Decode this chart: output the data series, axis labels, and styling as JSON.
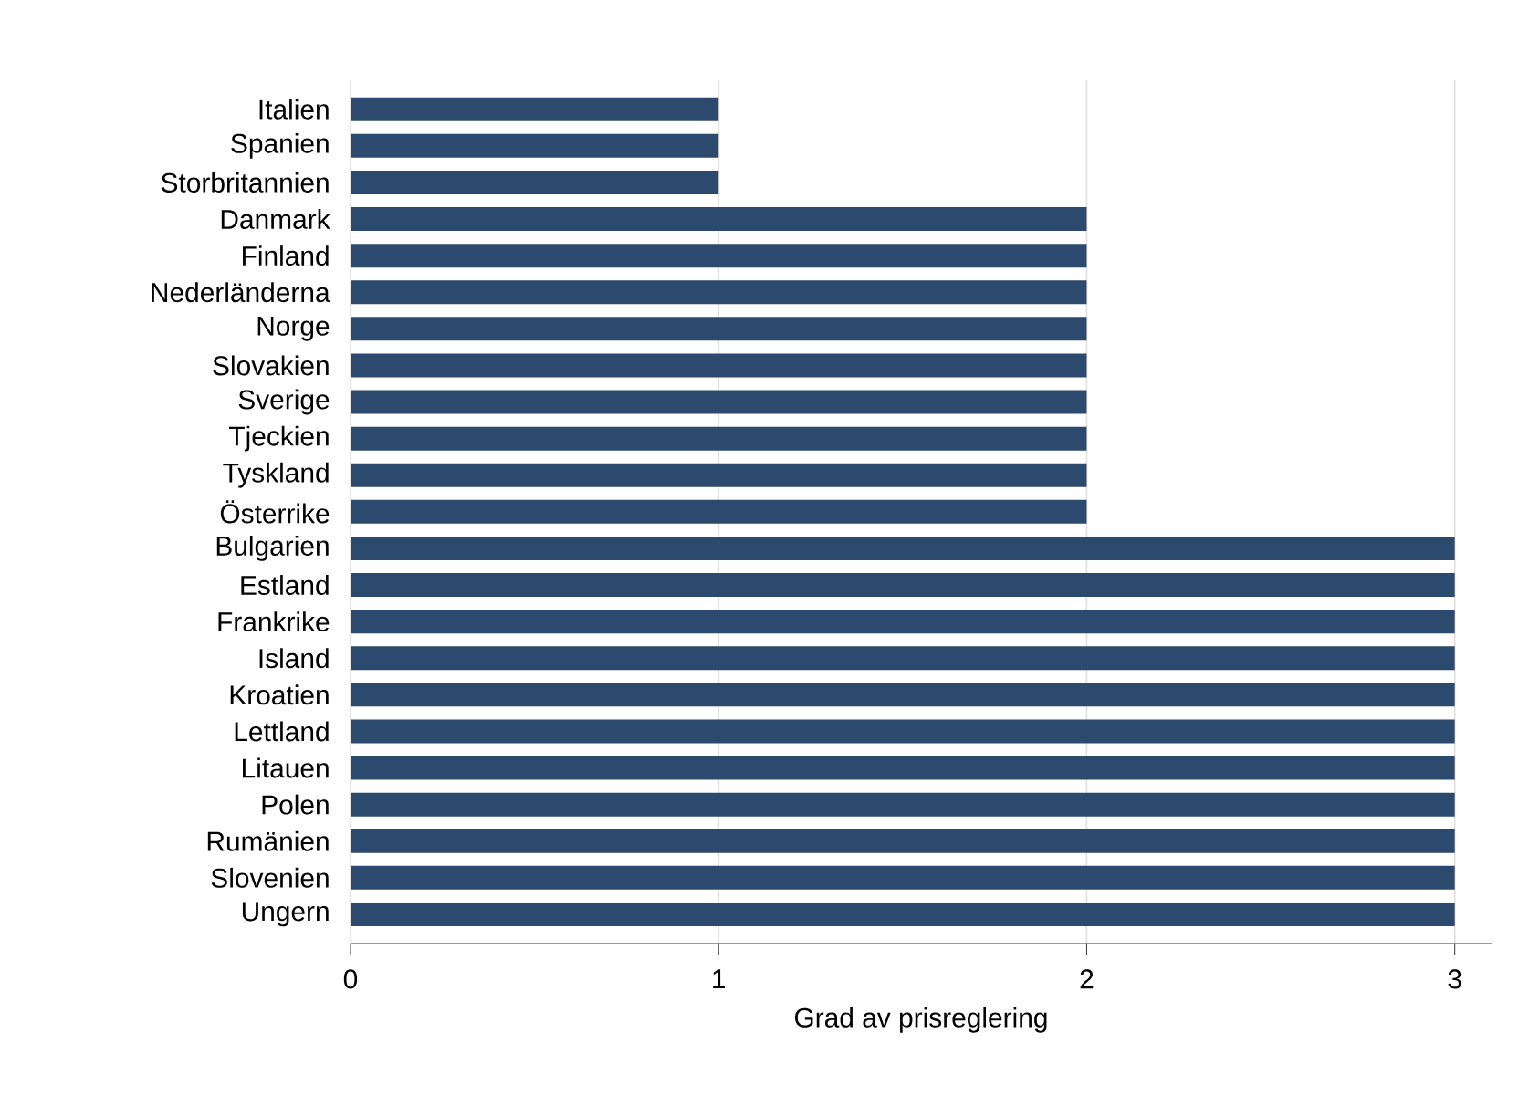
{
  "chart_data": {
    "type": "bar",
    "orientation": "horizontal",
    "xlabel": "Grad av prisreglering",
    "categories": [
      "Italien",
      "Spanien",
      "Storbritannien",
      "Danmark",
      "Finland",
      "Nederländerna",
      "Norge",
      "Slovakien",
      "Sverige",
      "Tjeckien",
      "Tyskland",
      "Österrike",
      "Bulgarien",
      "Estland",
      "Frankrike",
      "Island",
      "Kroatien",
      "Lettland",
      "Litauen",
      "Polen",
      "Rumänien",
      "Slovenien",
      "Ungern"
    ],
    "values": [
      1,
      1,
      1,
      2,
      2,
      2,
      2,
      2,
      2,
      2,
      2,
      2,
      3,
      3,
      3,
      3,
      3,
      3,
      3,
      3,
      3,
      3,
      3
    ],
    "color": "#2c4a6e",
    "xlim": [
      0,
      3.1
    ],
    "xticks": [
      0,
      1,
      2,
      3
    ],
    "grid": "x"
  }
}
